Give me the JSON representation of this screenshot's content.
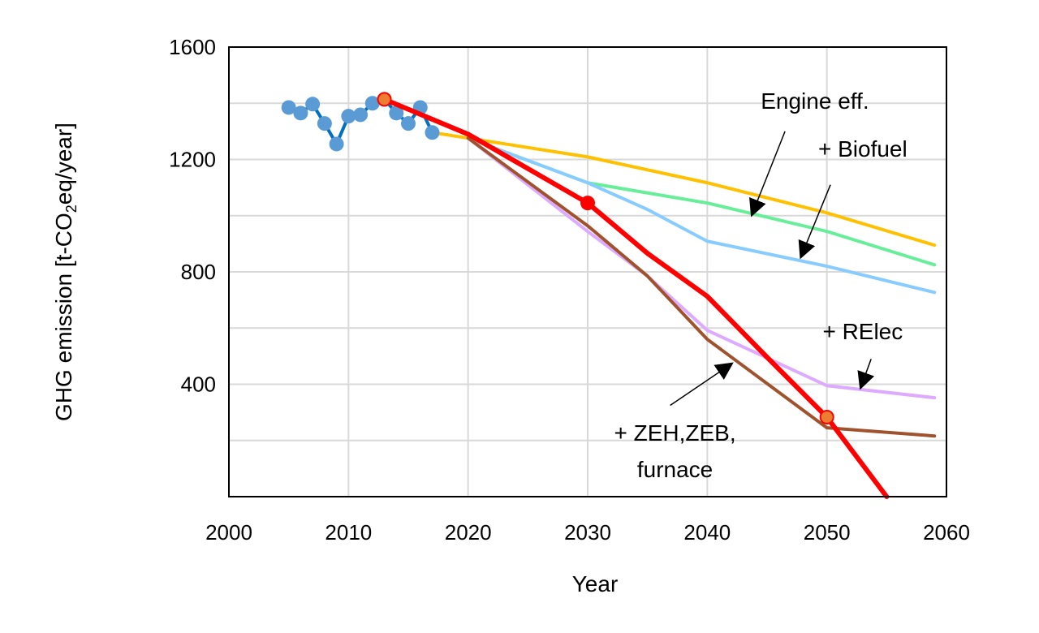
{
  "chart_data": {
    "type": "line",
    "title": "",
    "xlabel": "Year",
    "ylabel": {
      "prefix": "GHG emission [t-CO",
      "sub": "2",
      "suffix": "eq/year]"
    },
    "xlim": [
      2000,
      2060
    ],
    "ylim": [
      0,
      1600
    ],
    "x_ticks": [
      "2000",
      "2010",
      "2020",
      "2030",
      "2040",
      "2050",
      "2060"
    ],
    "y_ticks": [
      "400",
      "800",
      "1200",
      "1600"
    ],
    "grid": true,
    "series": [
      {
        "color": "#5B9BD5",
        "line_color": "#0070C0",
        "markers": true,
        "x": [
          2005,
          2006,
          2007,
          2008,
          2009,
          2010,
          2011,
          2012,
          2013,
          2014,
          2015,
          2016,
          2017
        ],
        "y": [
          1385,
          1365,
          1397,
          1328,
          1255,
          1354,
          1359,
          1400,
          1414,
          1365,
          1328,
          1385,
          1296
        ]
      },
      {
        "color": "#FFC000",
        "x": [
          2017,
          2020,
          2030,
          2040,
          2050,
          2059
        ],
        "y": [
          1296,
          1276,
          1209,
          1117,
          1010,
          895
        ]
      },
      {
        "color": "#66EE99",
        "x": [
          2020,
          2030,
          2040,
          2050,
          2059
        ],
        "y": [
          1276,
          1117,
          1045,
          944,
          825
        ]
      },
      {
        "color": "#88CCFF",
        "x": [
          2020,
          2030,
          2035,
          2040,
          2050,
          2059
        ],
        "y": [
          1276,
          1117,
          1022,
          909,
          820,
          727
        ]
      },
      {
        "color": "#DDAAFF",
        "x": [
          2020,
          2030,
          2035,
          2040,
          2050,
          2059
        ],
        "y": [
          1276,
          944,
          785,
          592,
          395,
          352
        ]
      },
      {
        "color": "#A0522D",
        "x": [
          2020,
          2030,
          2035,
          2040,
          2050,
          2059
        ],
        "y": [
          1276,
          964,
          785,
          560,
          245,
          216
        ]
      },
      {
        "color": "#FF0000",
        "x": [
          2013,
          2020,
          2030,
          2035,
          2040,
          2045,
          2050,
          2055
        ],
        "y": [
          1414,
          1290,
          1045,
          866,
          713,
          496,
          283,
          0
        ],
        "highlight_points": [
          {
            "x": 2013,
            "y": 1414,
            "fill": "#ED7D31"
          },
          {
            "x": 2030,
            "y": 1045,
            "fill": "#FF0000"
          },
          {
            "x": 2050,
            "y": 283,
            "fill": "#ED7D31"
          }
        ]
      }
    ],
    "annotations": [
      {
        "lines": [
          "Engine eff."
        ],
        "text_at": [
          2049,
          1380
        ],
        "arrow_from": [
          2046.5,
          1300
        ],
        "arrow_to": [
          2043.7,
          1000
        ]
      },
      {
        "lines": [
          "+ Biofuel"
        ],
        "text_at": [
          2053,
          1210
        ],
        "arrow_from": [
          2050.3,
          1110
        ],
        "arrow_to": [
          2047.8,
          850
        ]
      },
      {
        "lines": [
          "+ RElec"
        ],
        "text_at": [
          2053,
          560
        ],
        "arrow_from": [
          2053.7,
          490
        ],
        "arrow_to": [
          2052.8,
          385
        ]
      },
      {
        "lines": [
          "+ ZEH,ZEB,",
          "furnace"
        ],
        "text_at": [
          2037.3,
          200
        ],
        "arrow_from": [
          2036.9,
          325
        ],
        "arrow_to": [
          2042.1,
          475
        ]
      }
    ]
  }
}
